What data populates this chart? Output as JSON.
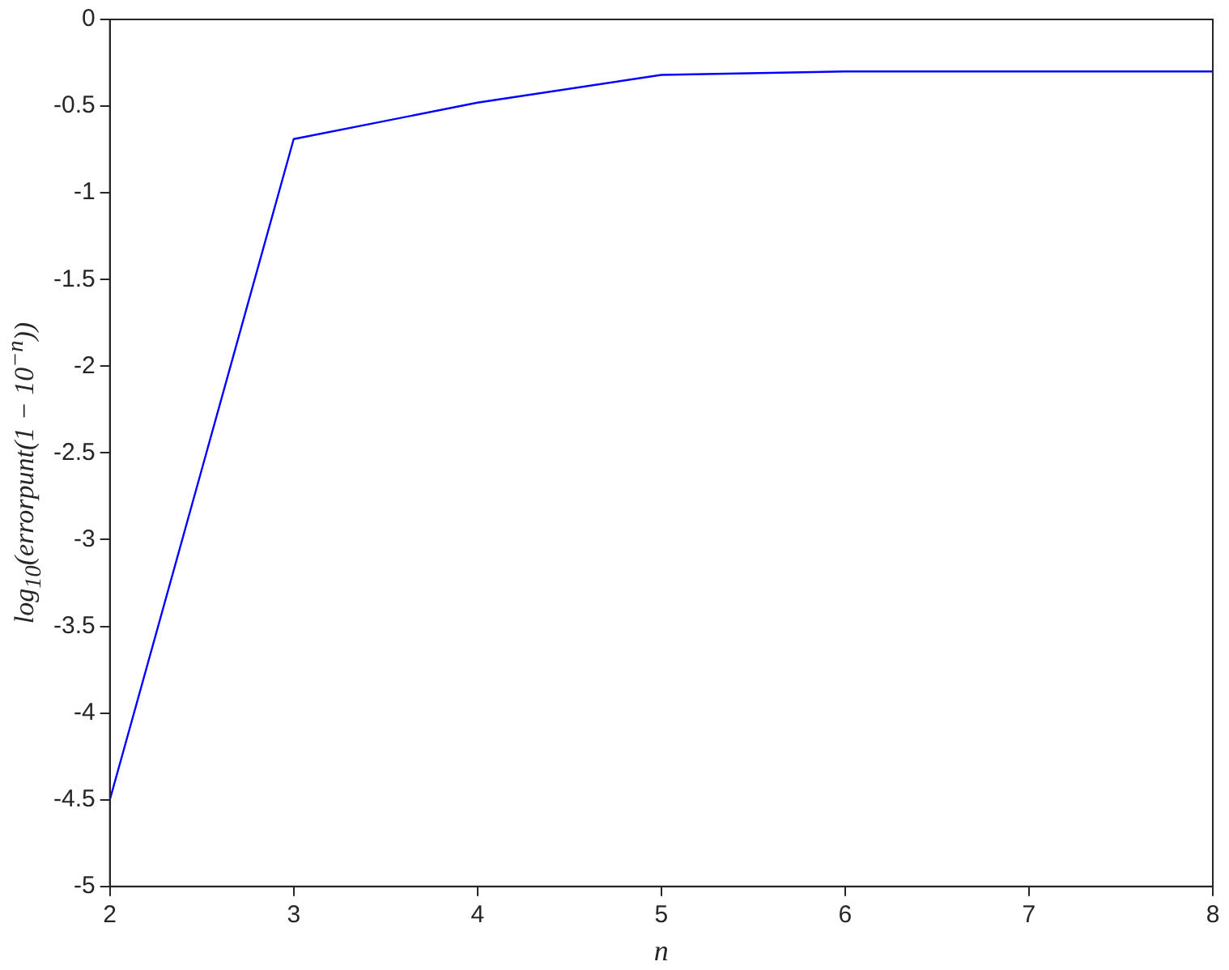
{
  "chart_data": {
    "type": "line",
    "xlabel": "n",
    "ylabel": "log$_{10}$(errorpunt(1 − 10$^{−n}$))",
    "x": [
      2,
      3,
      4,
      5,
      6,
      7,
      8
    ],
    "series": [
      {
        "color": "#0000ff",
        "values": [
          -4.5,
          -0.69,
          -0.48,
          -0.32,
          -0.3,
          -0.3,
          -0.3
        ]
      }
    ],
    "xlim": [
      2,
      8
    ],
    "xticks": [
      2,
      3,
      4,
      5,
      6,
      7,
      8
    ],
    "ylim": [
      -5,
      0
    ],
    "yticks": [
      -5,
      -4.5,
      -4,
      -3.5,
      -3,
      -2.5,
      -2,
      -1.5,
      -1,
      -0.5,
      0
    ],
    "grid": false,
    "legend": false,
    "marker": "none",
    "line_style": "solid"
  }
}
